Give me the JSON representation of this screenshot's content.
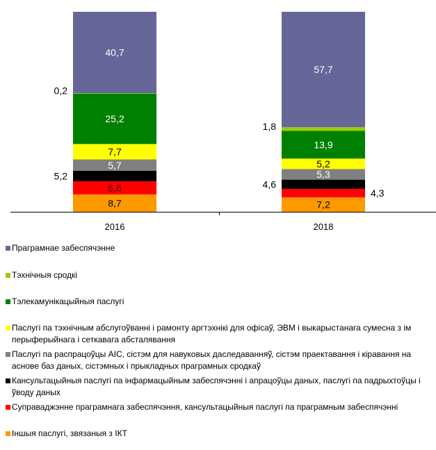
{
  "chart_data": {
    "type": "bar",
    "stacked": true,
    "categories": [
      "2016",
      "2018"
    ],
    "ylim": [
      0,
      100
    ],
    "legend_position": "bottom",
    "series": [
      {
        "name": "Іншыя паслугі, звязаныя з ІКТ",
        "color": "#ff9900",
        "values": [
          8.7,
          7.2
        ],
        "labels": [
          "8,7",
          "7,2"
        ],
        "label_color": "#000000",
        "label_pos": [
          "in",
          "in"
        ]
      },
      {
        "name": "Суправаджэнне праграмнага забеспячэння, кансультацыйныя паслугі па праграмным забеспячэнні",
        "color": "#ff0000",
        "values": [
          6.6,
          4.3
        ],
        "labels": [
          "6,6",
          "4,3"
        ],
        "label_color": "#400000",
        "label_pos": [
          "in",
          "right"
        ]
      },
      {
        "name": "Кансультацыйныя паслугі па інфармацыйным забеспячэнні і апрацоўцы даных, паслугі па падрыхтоўцы і ўводу даных",
        "color": "#000000",
        "values": [
          5.2,
          4.6
        ],
        "labels": [
          "5,2",
          "4,6"
        ],
        "label_color": "#000000",
        "label_pos": [
          "left",
          "left"
        ]
      },
      {
        "name": "Паслугі па распрацоўцы АІС, сістэм для навуковых даследаванняў, сістэм праектавання і кіравання на аснове баз даных, сістэмных і прыкладных праграмных сродкаў",
        "color": "#808080",
        "values": [
          5.7,
          5.3
        ],
        "labels": [
          "5,7",
          "5,3"
        ],
        "label_color": "#ffffff",
        "label_pos": [
          "in",
          "in"
        ]
      },
      {
        "name": "Паслугі па тэхнічным абслугоўванні і рамонту аргтэхнікі для офісаў, ЭВМ і выкарыстанага сумесна з ім перыферыйнага і сеткавага абсталявання",
        "color": "#ffff00",
        "values": [
          7.7,
          5.2
        ],
        "labels": [
          "7,7",
          "5,2"
        ],
        "label_color": "#000000",
        "label_pos": [
          "in",
          "in"
        ]
      },
      {
        "name": "Тэлекамунікацыйныя паслугі",
        "color": "#008000",
        "values": [
          25.2,
          13.9
        ],
        "labels": [
          "25,2",
          "13,9"
        ],
        "label_color": "#ffffff",
        "label_pos": [
          "in",
          "in"
        ]
      },
      {
        "name": "Тэхнічныя сродкі",
        "color": "#99cc00",
        "values": [
          0.2,
          1.8
        ],
        "labels": [
          "0,2",
          "1,8"
        ],
        "label_color": "#000000",
        "label_pos": [
          "left",
          "left"
        ]
      },
      {
        "name": "Праграмнае забеспячэнне",
        "color": "#666699",
        "values": [
          40.7,
          57.7
        ],
        "labels": [
          "40,7",
          "57,7"
        ],
        "label_color": "#ffffff",
        "label_pos": [
          "in",
          "in"
        ]
      }
    ],
    "legend_order": [
      7,
      6,
      5,
      4,
      3,
      2,
      1,
      0
    ]
  }
}
